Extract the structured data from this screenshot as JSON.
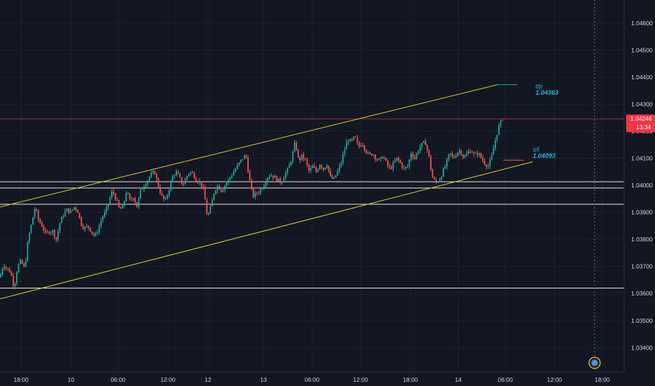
{
  "chart_data": {
    "type": "candlestick",
    "y_axis": {
      "ticks": [
        "1.04600",
        "1.04500",
        "1.04400",
        "1.04300",
        "1.04200",
        "1.04100",
        "1.04000",
        "1.03900",
        "1.03800",
        "1.03700",
        "1.03600",
        "1.03500",
        "1.03400"
      ],
      "tick_values": [
        1.046,
        1.045,
        1.044,
        1.043,
        1.042,
        1.041,
        1.04,
        1.039,
        1.038,
        1.037,
        1.036,
        1.035,
        1.034
      ],
      "range": [
        1.0331,
        1.04685
      ]
    },
    "x_axis": {
      "ticks": [
        "18:00",
        "10",
        "06:00",
        "12:00",
        "12",
        "13",
        "06:00",
        "12:00",
        "18:00",
        "14",
        "06:00",
        "12:00",
        "18:00"
      ]
    },
    "price_tag": {
      "value": "1.04246",
      "countdown": "13:34",
      "level": 1.04246,
      "color": "#f23645"
    },
    "horizontal_levels": [
      1.0399,
      1.04013,
      1.0393,
      1.0362
    ],
    "channel_lines": [
      {
        "from": [
          1.0392,
          0
        ],
        "to": [
          1.04372,
          708
        ]
      },
      {
        "from": [
          1.0358,
          0
        ],
        "to": [
          1.04087,
          758
        ]
      }
    ],
    "take_profit": {
      "label": "t/p",
      "value": "1.04363"
    },
    "stop_loss": {
      "label": "s/l",
      "value": "1.04093"
    },
    "colors": {
      "up": "#26a69a",
      "down": "#ef5350",
      "channel": "#d9cc3c",
      "level": "#e8e8e8",
      "annotation": "#2ab5d8"
    },
    "waypoints": [
      [
        0,
        1.0366
      ],
      [
        5,
        1.0371
      ],
      [
        10,
        1.0369
      ],
      [
        15,
        1.0368
      ],
      [
        20,
        1.0362
      ],
      [
        25,
        1.037
      ],
      [
        30,
        1.0372
      ],
      [
        35,
        1.0369
      ],
      [
        40,
        1.038
      ],
      [
        45,
        1.0386
      ],
      [
        50,
        1.0392
      ],
      [
        55,
        1.0387
      ],
      [
        60,
        1.0385
      ],
      [
        65,
        1.0382
      ],
      [
        70,
        1.0383
      ],
      [
        75,
        1.0383
      ],
      [
        80,
        1.038
      ],
      [
        85,
        1.0386
      ],
      [
        90,
        1.0389
      ],
      [
        95,
        1.0391
      ],
      [
        100,
        1.039
      ],
      [
        105,
        1.0392
      ],
      [
        110,
        1.0391
      ],
      [
        115,
        1.0386
      ],
      [
        120,
        1.0384
      ],
      [
        125,
        1.0385
      ],
      [
        130,
        1.0383
      ],
      [
        135,
        1.0381
      ],
      [
        140,
        1.0384
      ],
      [
        145,
        1.0388
      ],
      [
        150,
        1.039
      ],
      [
        155,
        1.0394
      ],
      [
        160,
        1.0398
      ],
      [
        165,
        1.0395
      ],
      [
        170,
        1.0391
      ],
      [
        175,
        1.0392
      ],
      [
        180,
        1.0398
      ],
      [
        185,
        1.0394
      ],
      [
        190,
        1.0396
      ],
      [
        195,
        1.0392
      ],
      [
        200,
        1.0398
      ],
      [
        205,
        1.04
      ],
      [
        210,
        1.0402
      ],
      [
        215,
        1.0404
      ],
      [
        220,
        1.0405
      ],
      [
        225,
        1.04
      ],
      [
        230,
        1.0396
      ],
      [
        235,
        1.0394
      ],
      [
        240,
        1.0398
      ],
      [
        245,
        1.0403
      ],
      [
        250,
        1.0405
      ],
      [
        255,
        1.0403
      ],
      [
        260,
        1.04
      ],
      [
        265,
        1.0403
      ],
      [
        270,
        1.0405
      ],
      [
        275,
        1.0404
      ],
      [
        280,
        1.0402
      ],
      [
        285,
        1.0401
      ],
      [
        290,
        1.0398
      ],
      [
        295,
        1.0388
      ],
      [
        300,
        1.0392
      ],
      [
        305,
        1.0398
      ],
      [
        310,
        1.04
      ],
      [
        315,
        1.0398
      ],
      [
        320,
        1.04
      ],
      [
        325,
        1.0402
      ],
      [
        330,
        1.0404
      ],
      [
        335,
        1.0406
      ],
      [
        340,
        1.0408
      ],
      [
        345,
        1.041
      ],
      [
        350,
        1.0411
      ],
      [
        355,
        1.0402
      ],
      [
        360,
        1.0396
      ],
      [
        365,
        1.0397
      ],
      [
        370,
        1.0398
      ],
      [
        375,
        1.04
      ],
      [
        380,
        1.0403
      ],
      [
        385,
        1.0404
      ],
      [
        390,
        1.0403
      ],
      [
        395,
        1.0402
      ],
      [
        400,
        1.0401
      ],
      [
        405,
        1.0404
      ],
      [
        410,
        1.0406
      ],
      [
        415,
        1.041
      ],
      [
        420,
        1.0416
      ],
      [
        425,
        1.0409
      ],
      [
        430,
        1.0411
      ],
      [
        435,
        1.0409
      ],
      [
        440,
        1.0405
      ],
      [
        445,
        1.0407
      ],
      [
        450,
        1.0405
      ],
      [
        455,
        1.0408
      ],
      [
        460,
        1.0406
      ],
      [
        465,
        1.0408
      ],
      [
        470,
        1.0403
      ],
      [
        475,
        1.0402
      ],
      [
        480,
        1.0405
      ],
      [
        485,
        1.0408
      ],
      [
        490,
        1.0413
      ],
      [
        495,
        1.0417
      ],
      [
        500,
        1.0416
      ],
      [
        505,
        1.0418
      ],
      [
        510,
        1.0414
      ],
      [
        515,
        1.0416
      ],
      [
        520,
        1.0413
      ],
      [
        525,
        1.0411
      ],
      [
        530,
        1.0412
      ],
      [
        535,
        1.041
      ],
      [
        540,
        1.0409
      ],
      [
        545,
        1.0411
      ],
      [
        550,
        1.0408
      ],
      [
        555,
        1.0406
      ],
      [
        560,
        1.0408
      ],
      [
        565,
        1.041
      ],
      [
        570,
        1.0408
      ],
      [
        575,
        1.0406
      ],
      [
        580,
        1.0407
      ],
      [
        585,
        1.0412
      ],
      [
        590,
        1.041
      ],
      [
        595,
        1.0413
      ],
      [
        600,
        1.0415
      ],
      [
        605,
        1.0416
      ],
      [
        610,
        1.0411
      ],
      [
        615,
        1.0403
      ],
      [
        620,
        1.0401
      ],
      [
        625,
        1.0402
      ],
      [
        630,
        1.0405
      ],
      [
        635,
        1.0408
      ],
      [
        640,
        1.0412
      ],
      [
        645,
        1.041
      ],
      [
        650,
        1.0412
      ],
      [
        655,
        1.0413
      ],
      [
        660,
        1.041
      ],
      [
        665,
        1.0412
      ],
      [
        670,
        1.0413
      ],
      [
        675,
        1.0411
      ],
      [
        680,
        1.0412
      ],
      [
        685,
        1.041
      ],
      [
        690,
        1.0408
      ],
      [
        695,
        1.0407
      ],
      [
        700,
        1.0411
      ],
      [
        705,
        1.0417
      ],
      [
        710,
        1.0422
      ],
      [
        715,
        1.04246
      ]
    ]
  }
}
